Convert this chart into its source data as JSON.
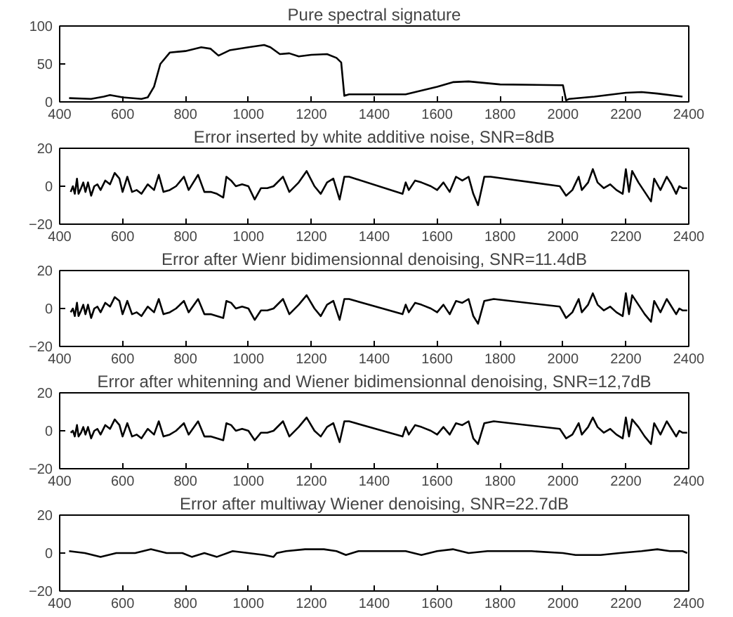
{
  "chart_data": [
    {
      "type": "line",
      "title": "Pure spectral signature",
      "color": "#000000",
      "xlim": [
        400,
        2400
      ],
      "xticks": [
        400,
        600,
        800,
        1000,
        1200,
        1400,
        1600,
        1800,
        2000,
        2200,
        2400
      ],
      "ylim": [
        0,
        100
      ],
      "yticks": [
        0,
        50,
        100
      ],
      "grid": false,
      "x": [
        430,
        500,
        540,
        560,
        600,
        660,
        680,
        700,
        720,
        750,
        800,
        850,
        880,
        905,
        940,
        1000,
        1050,
        1070,
        1100,
        1130,
        1160,
        1200,
        1250,
        1280,
        1295,
        1305,
        1320,
        1400,
        1500,
        1600,
        1650,
        1700,
        1800,
        1990,
        2000,
        2010,
        2020,
        2100,
        2200,
        2250,
        2300,
        2380
      ],
      "values": [
        5,
        4,
        7,
        9,
        6,
        4,
        6,
        20,
        50,
        65,
        67,
        72,
        70,
        61,
        68,
        72,
        75,
        72,
        63,
        64,
        60,
        62,
        63,
        58,
        52,
        8,
        10,
        10,
        10,
        20,
        26,
        27,
        23,
        22,
        22,
        2,
        4,
        7,
        12,
        13,
        11,
        7
      ]
    },
    {
      "type": "line",
      "title": "Error inserted by white additive noise, SNR=8dB",
      "color": "#000000",
      "xlim": [
        400,
        2400
      ],
      "xticks": [
        400,
        600,
        800,
        1000,
        1200,
        1400,
        1600,
        1800,
        2000,
        2200,
        2400
      ],
      "ylim": [
        -20,
        20
      ],
      "yticks": [
        -20,
        0,
        20
      ],
      "grid": false,
      "x": [
        435,
        442,
        448,
        455,
        460,
        468,
        475,
        482,
        490,
        500,
        510,
        520,
        530,
        545,
        560,
        575,
        590,
        600,
        615,
        630,
        645,
        660,
        680,
        700,
        715,
        730,
        750,
        770,
        795,
        810,
        840,
        860,
        880,
        900,
        920,
        930,
        945,
        960,
        980,
        1000,
        1020,
        1040,
        1060,
        1080,
        1110,
        1130,
        1160,
        1185,
        1210,
        1230,
        1250,
        1270,
        1290,
        1305,
        1320,
        1490,
        1500,
        1510,
        1530,
        1550,
        1580,
        1600,
        1620,
        1640,
        1660,
        1680,
        1700,
        1715,
        1730,
        1750,
        1770,
        1990,
        2010,
        2030,
        2050,
        2060,
        2080,
        2095,
        2110,
        2130,
        2150,
        2170,
        2190,
        2200,
        2210,
        2220,
        2240,
        2260,
        2280,
        2290,
        2310,
        2330,
        2345,
        2360,
        2370,
        2380,
        2395
      ],
      "values": [
        -3,
        0,
        -4,
        4,
        -4,
        -1,
        2,
        -3,
        2,
        -5,
        0,
        1,
        -2,
        3,
        1,
        7,
        4,
        -3,
        5,
        -3,
        -2,
        -4,
        1,
        -2,
        6,
        -3,
        -2,
        0,
        5,
        -2,
        6,
        -3,
        -3,
        -4,
        -6,
        5,
        3,
        0,
        1,
        0,
        -7,
        -1,
        -1,
        0,
        5,
        -3,
        2,
        8,
        0,
        -4,
        2,
        4,
        -7,
        5,
        5,
        -4,
        2,
        -2,
        3,
        2,
        0,
        -2,
        2,
        -3,
        5,
        3,
        5,
        -4,
        -10,
        5,
        5,
        0,
        -5,
        -2,
        5,
        -2,
        2,
        9,
        2,
        -1,
        1,
        -2,
        -4,
        9,
        -3,
        8,
        2,
        -3,
        -8,
        4,
        -2,
        5,
        1,
        -4,
        0,
        -1,
        -1
      ]
    },
    {
      "type": "line",
      "title": "Error after Wienr bidimensionnal denoising, SNR=11.4dB",
      "color": "#000000",
      "xlim": [
        400,
        2400
      ],
      "xticks": [
        400,
        600,
        800,
        1000,
        1200,
        1400,
        1600,
        1800,
        2000,
        2200,
        2400
      ],
      "ylim": [
        -20,
        20
      ],
      "yticks": [
        -20,
        0,
        20
      ],
      "grid": false,
      "x": [
        435,
        442,
        448,
        455,
        460,
        468,
        475,
        482,
        490,
        500,
        510,
        520,
        530,
        545,
        560,
        575,
        590,
        600,
        615,
        630,
        645,
        660,
        680,
        700,
        715,
        730,
        750,
        770,
        795,
        810,
        840,
        860,
        880,
        900,
        920,
        930,
        945,
        960,
        980,
        1000,
        1020,
        1040,
        1060,
        1080,
        1110,
        1130,
        1160,
        1185,
        1210,
        1230,
        1250,
        1270,
        1290,
        1305,
        1320,
        1490,
        1500,
        1510,
        1530,
        1550,
        1580,
        1600,
        1620,
        1640,
        1660,
        1680,
        1700,
        1715,
        1730,
        1750,
        1780,
        1990,
        2010,
        2030,
        2050,
        2060,
        2080,
        2095,
        2110,
        2130,
        2150,
        2170,
        2190,
        2200,
        2210,
        2220,
        2240,
        2260,
        2280,
        2290,
        2310,
        2330,
        2345,
        2360,
        2370,
        2380,
        2395
      ],
      "values": [
        -2,
        0,
        -4,
        3,
        -4,
        -1,
        2,
        -3,
        2,
        -5,
        0,
        1,
        -2,
        3,
        1,
        6,
        4,
        -3,
        4,
        -3,
        -2,
        -4,
        1,
        -2,
        5,
        -3,
        -2,
        0,
        4,
        -2,
        5,
        -3,
        -3,
        -4,
        -5,
        4,
        3,
        0,
        1,
        0,
        -6,
        -1,
        -1,
        0,
        5,
        -3,
        2,
        7,
        0,
        -4,
        2,
        4,
        -6,
        5,
        5,
        -3,
        2,
        -2,
        3,
        2,
        0,
        -2,
        2,
        -3,
        4,
        3,
        5,
        -4,
        -8,
        4,
        5,
        1,
        -5,
        -2,
        5,
        -2,
        2,
        8,
        2,
        -1,
        1,
        -2,
        -4,
        8,
        -3,
        7,
        2,
        -3,
        -7,
        4,
        -2,
        5,
        1,
        -3,
        0,
        -1,
        -1
      ]
    },
    {
      "type": "line",
      "title": "Error after whitenning and Wiener bidimensionnal denoising, SNR=12,7dB",
      "color": "#000000",
      "xlim": [
        400,
        2400
      ],
      "xticks": [
        400,
        600,
        800,
        1000,
        1200,
        1400,
        1600,
        1800,
        2000,
        2200,
        2400
      ],
      "ylim": [
        -20,
        20
      ],
      "yticks": [
        -20,
        0,
        20
      ],
      "grid": false,
      "x": [
        435,
        442,
        448,
        455,
        460,
        468,
        475,
        482,
        490,
        500,
        510,
        520,
        530,
        545,
        560,
        575,
        590,
        600,
        615,
        630,
        645,
        660,
        680,
        700,
        715,
        730,
        750,
        770,
        795,
        810,
        840,
        860,
        880,
        900,
        920,
        930,
        945,
        960,
        980,
        1000,
        1020,
        1040,
        1060,
        1080,
        1110,
        1130,
        1160,
        1185,
        1210,
        1230,
        1250,
        1270,
        1290,
        1305,
        1320,
        1490,
        1500,
        1510,
        1530,
        1550,
        1580,
        1600,
        1620,
        1640,
        1660,
        1680,
        1700,
        1715,
        1730,
        1750,
        1780,
        1990,
        2010,
        2030,
        2050,
        2060,
        2080,
        2095,
        2110,
        2130,
        2150,
        2170,
        2190,
        2200,
        2210,
        2220,
        2240,
        2260,
        2280,
        2290,
        2310,
        2330,
        2345,
        2360,
        2370,
        2380,
        2395
      ],
      "values": [
        -1,
        0,
        -3,
        3,
        -3,
        -1,
        2,
        -2,
        2,
        -4,
        0,
        1,
        -2,
        3,
        1,
        6,
        3,
        -3,
        4,
        -3,
        -2,
        -4,
        1,
        -2,
        5,
        -3,
        -2,
        0,
        4,
        -2,
        5,
        -3,
        -3,
        -4,
        -5,
        4,
        3,
        0,
        1,
        0,
        -5,
        -1,
        -1,
        0,
        5,
        -3,
        2,
        7,
        0,
        -3,
        2,
        4,
        -6,
        5,
        5,
        -3,
        2,
        -2,
        3,
        2,
        0,
        -2,
        2,
        -2,
        4,
        3,
        5,
        -4,
        -7,
        4,
        5,
        1,
        -4,
        -2,
        4,
        -2,
        2,
        7,
        2,
        -1,
        1,
        -2,
        -4,
        7,
        -3,
        6,
        2,
        -3,
        -7,
        4,
        -2,
        5,
        1,
        -3,
        0,
        -1,
        -1
      ]
    },
    {
      "type": "line",
      "title": "Error after multiway Wiener denoising, SNR=22.7dB",
      "color": "#000000",
      "xlim": [
        400,
        2400
      ],
      "xticks": [
        400,
        600,
        800,
        1000,
        1200,
        1400,
        1600,
        1800,
        2000,
        2200,
        2400
      ],
      "ylim": [
        -20,
        20
      ],
      "yticks": [
        -20,
        0,
        20
      ],
      "grid": false,
      "x": [
        430,
        480,
        530,
        580,
        640,
        690,
        740,
        790,
        820,
        860,
        900,
        950,
        1000,
        1050,
        1080,
        1090,
        1120,
        1180,
        1240,
        1280,
        1310,
        1350,
        1450,
        1500,
        1550,
        1600,
        1650,
        1700,
        1760,
        1800,
        1900,
        2000,
        2040,
        2080,
        2120,
        2180,
        2250,
        2300,
        2340,
        2380,
        2395
      ],
      "values": [
        1,
        0,
        -2,
        0,
        0,
        2,
        0,
        0,
        -2,
        0,
        -2,
        1,
        0,
        -1,
        -2,
        0,
        1,
        2,
        2,
        1,
        -1,
        1,
        1,
        1,
        -1,
        1,
        2,
        0,
        1,
        1,
        1,
        0,
        -1,
        -1,
        -1,
        0,
        1,
        2,
        1,
        1,
        0
      ]
    }
  ]
}
